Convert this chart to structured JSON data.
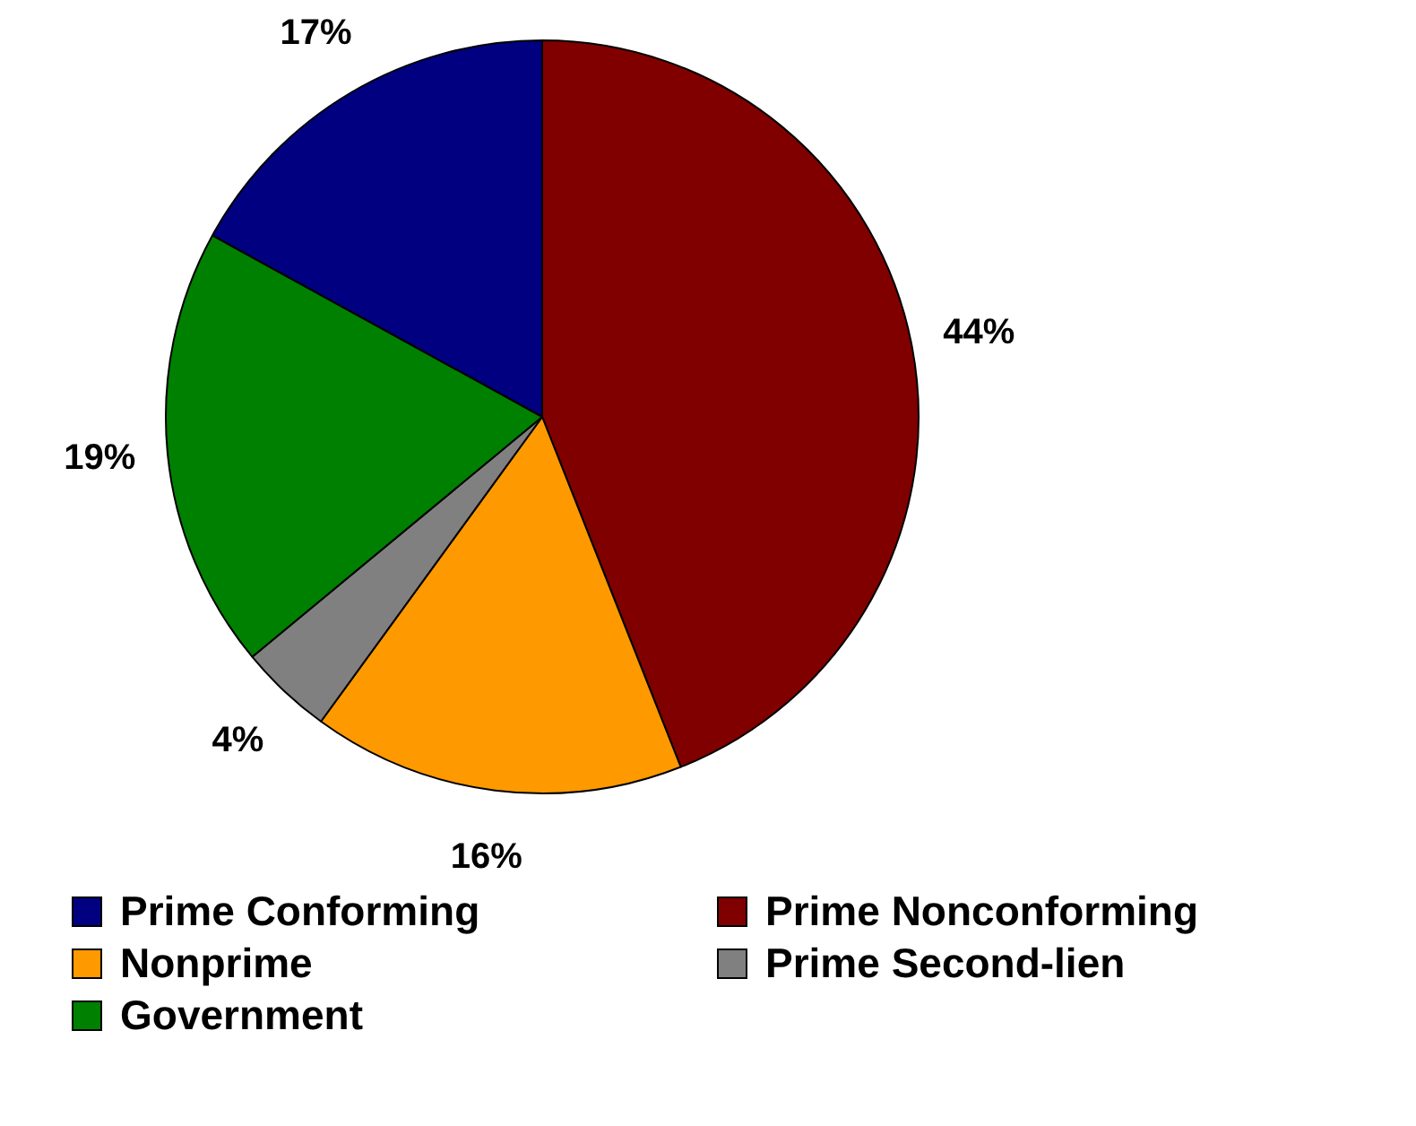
{
  "chart_data": {
    "type": "pie",
    "categories": [
      "Prime Conforming",
      "Prime Nonconforming",
      "Nonprime",
      "Prime Second-lien",
      "Government"
    ],
    "values": [
      17,
      44,
      16,
      4,
      19
    ],
    "colors": [
      "#000080",
      "#800000",
      "#ff9900",
      "#808080",
      "#008000"
    ],
    "value_labels": [
      "17%",
      "44%",
      "16%",
      "4%",
      "19%"
    ],
    "legend": "bottom"
  }
}
